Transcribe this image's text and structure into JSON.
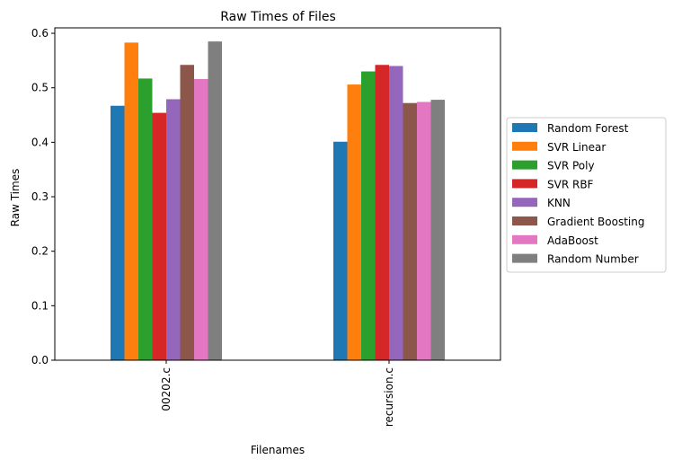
{
  "chart_data": {
    "type": "bar",
    "title": "Raw Times of Files",
    "xlabel": "Filenames",
    "ylabel": "Raw Times",
    "categories": [
      "00202.c",
      "recursion.c"
    ],
    "ylim": [
      0,
      0.61
    ],
    "yticks": [
      0.0,
      0.1,
      0.2,
      0.3,
      0.4,
      0.5,
      0.6
    ],
    "ytick_labels": [
      "0.0",
      "0.1",
      "0.2",
      "0.3",
      "0.4",
      "0.5",
      "0.6"
    ],
    "grid": false,
    "legend_position": "right, outside the axes",
    "series": [
      {
        "name": "Random Forest",
        "color": "#1f77b4",
        "values": [
          0.467,
          0.401
        ]
      },
      {
        "name": "SVR Linear",
        "color": "#ff7f0e",
        "values": [
          0.583,
          0.506
        ]
      },
      {
        "name": "SVR Poly",
        "color": "#2ca02c",
        "values": [
          0.517,
          0.53
        ]
      },
      {
        "name": "SVR RBF",
        "color": "#d62728",
        "values": [
          0.454,
          0.542
        ]
      },
      {
        "name": "KNN",
        "color": "#9467bd",
        "values": [
          0.479,
          0.54
        ]
      },
      {
        "name": "Gradient Boosting",
        "color": "#8c564b",
        "values": [
          0.542,
          0.472
        ]
      },
      {
        "name": "AdaBoost",
        "color": "#e377c2",
        "values": [
          0.516,
          0.474
        ]
      },
      {
        "name": "Random Number",
        "color": "#7f7f7f",
        "values": [
          0.585,
          0.478
        ]
      }
    ]
  }
}
